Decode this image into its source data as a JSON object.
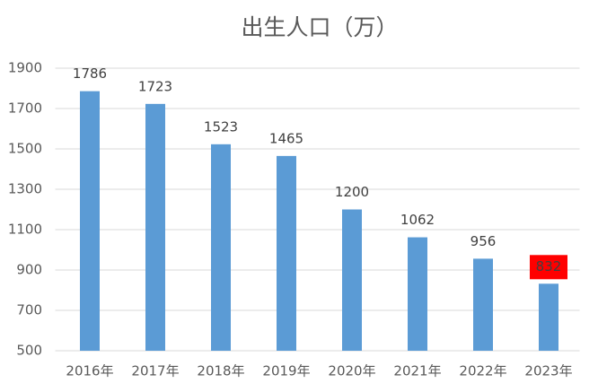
{
  "chart_data": {
    "type": "bar",
    "title": "出生人口（万）",
    "categories": [
      "2016年",
      "2017年",
      "2018年",
      "2019年",
      "2020年",
      "2021年",
      "2022年",
      "2023年"
    ],
    "values": [
      1786,
      1723,
      1523,
      1465,
      1200,
      1062,
      956,
      832
    ],
    "color": "#5b9bd5",
    "ylim": [
      500,
      1900
    ],
    "yticks": [
      500,
      700,
      900,
      1100,
      1300,
      1500,
      1700,
      1900
    ],
    "grid": true,
    "highlight_index": 7,
    "highlight_color": "#ff0000"
  }
}
